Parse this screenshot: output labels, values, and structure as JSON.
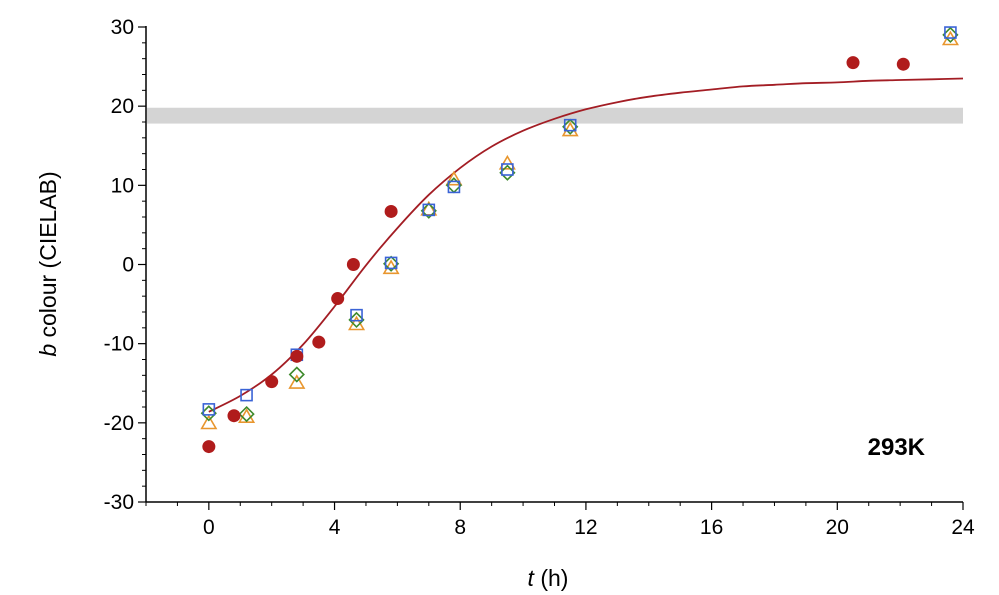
{
  "chart_data": {
    "type": "scatter",
    "title": "",
    "xlabel_var": "t",
    "xlabel_unit": " (h)",
    "ylabel_var": "b",
    "ylabel_rest": " colour (CIELAB)",
    "xlim": [
      -2,
      24
    ],
    "ylim": [
      -30,
      30
    ],
    "xticks": [
      0,
      4,
      8,
      12,
      16,
      20,
      24
    ],
    "yticks": [
      -30,
      -20,
      -10,
      0,
      10,
      20,
      30
    ],
    "grid": false,
    "annotation": "293K",
    "band": {
      "y1": 17.8,
      "y2": 19.8,
      "color": "#d4d4d4"
    },
    "colors": {
      "filled": "#b01c1c",
      "fit": "#a31d24",
      "triangle": "#e8962e",
      "diamond": "#3e8a2c",
      "square": "#3a63d6"
    },
    "series": [
      {
        "marker": "circle-filled",
        "color": "#b01c1c",
        "x": [
          0,
          0.8,
          2.0,
          2.8,
          3.5,
          4.1,
          4.6,
          5.8,
          20.5,
          22.1
        ],
        "y": [
          -23,
          -19.1,
          -14.8,
          -11.6,
          -9.8,
          -4.3,
          0,
          6.7,
          25.5,
          25.3
        ]
      },
      {
        "marker": "triangle-open",
        "color": "#e8962e",
        "x": [
          0,
          1.2,
          2.8,
          4.7,
          5.8,
          7.0,
          7.8,
          9.5,
          11.5,
          23.6
        ],
        "y": [
          -20.1,
          -19.3,
          -15.0,
          -7.6,
          -0.5,
          6.9,
          10.7,
          12.7,
          16.9,
          28.4
        ]
      },
      {
        "marker": "diamond-open",
        "color": "#3e8a2c",
        "x": [
          0,
          1.2,
          2.8,
          4.7,
          5.8,
          7.0,
          7.8,
          9.5,
          11.5,
          23.6
        ],
        "y": [
          -18.8,
          -18.9,
          -13.9,
          -7.0,
          0.1,
          6.8,
          10.0,
          11.6,
          17.4,
          29.0
        ]
      },
      {
        "marker": "square-open",
        "color": "#3a63d6",
        "x": [
          0,
          1.2,
          2.8,
          4.7,
          5.8,
          7.0,
          7.8,
          9.5,
          11.5,
          23.6
        ],
        "y": [
          -18.3,
          -16.5,
          -11.4,
          -6.4,
          0.2,
          6.9,
          9.8,
          12.0,
          17.6,
          29.3
        ]
      }
    ],
    "fit": {
      "x": [
        0,
        1,
        2,
        3,
        4,
        5,
        6,
        7,
        8,
        9,
        10,
        11,
        12,
        13,
        14,
        15,
        16,
        17,
        18,
        19,
        20,
        21,
        22,
        23,
        24
      ],
      "y": [
        -18.6,
        -16.6,
        -13.9,
        -10.1,
        -5.3,
        -0.1,
        4.6,
        8.8,
        12.2,
        14.9,
        16.9,
        18.4,
        19.6,
        20.5,
        21.2,
        21.7,
        22.1,
        22.5,
        22.7,
        22.9,
        23.0,
        23.2,
        23.3,
        23.4,
        23.5
      ]
    }
  }
}
